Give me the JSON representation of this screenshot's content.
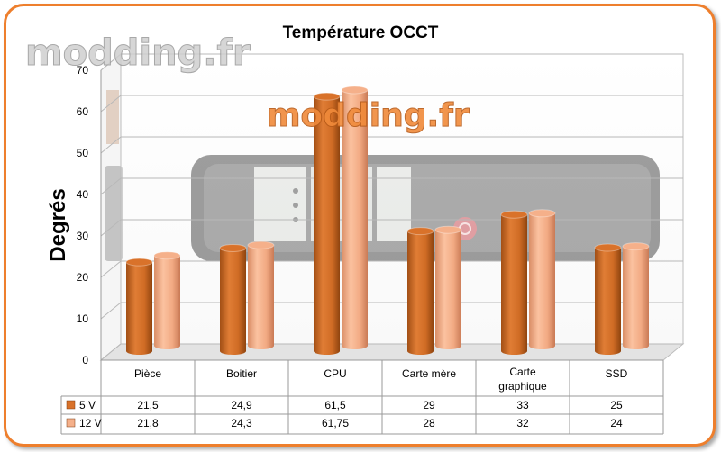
{
  "watermark": {
    "text": "modding.fr"
  },
  "chart_data": {
    "type": "bar",
    "title": "Température OCCT",
    "ylabel": "Degrés",
    "xlabel": "",
    "ylim": [
      0,
      70
    ],
    "yticks": [
      0,
      10,
      20,
      30,
      40,
      50,
      60,
      70
    ],
    "grid": true,
    "legend": "in data table",
    "categories": [
      "Pièce",
      "Boitier",
      "CPU",
      "Carte mère",
      "Carte graphique",
      "SSD"
    ],
    "series": [
      {
        "name": "5 V",
        "values": [
          21.5,
          24.9,
          61.5,
          29,
          33,
          25
        ],
        "labels": [
          "21,5",
          "24,9",
          "61,5",
          "29",
          "33",
          "25"
        ],
        "color": "#d9722a"
      },
      {
        "name": "12 V",
        "values": [
          21.8,
          24.3,
          61.75,
          28,
          32,
          24
        ],
        "labels": [
          "21,8",
          "24,3",
          "61,75",
          "28",
          "32",
          "24"
        ],
        "color": "#f5b08a"
      }
    ]
  }
}
